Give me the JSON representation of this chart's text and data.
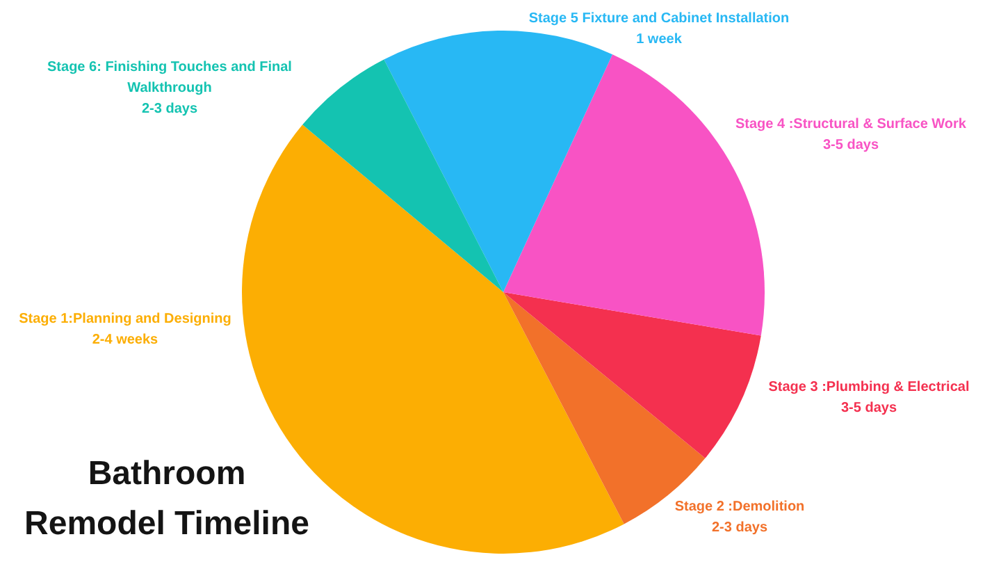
{
  "chart_data": {
    "type": "pie",
    "title": "Bathroom Remodel Timeline",
    "categories": [
      "Stage 1:Planning and Designing\n2-4 weeks",
      "Stage 2 :Demolition\n2-3 days",
      "Stage 3 :Plumbing & Electrical\n3-5 days",
      "Stage 4 :Structural & Surface Work\n3-5 days",
      "Stage 5 Fixture and Cabinet Installation\n1 week",
      "Stage 6: Finishing Touches and Final Walkthrough\n2-3 days"
    ],
    "values": [
      43.7,
      6.4,
      8.3,
      20.8,
      14.4,
      6.4
    ],
    "colors": [
      "#fcae03",
      "#f2712a",
      "#f4304f",
      "#f853c4",
      "#28b8f4",
      "#14c3b1"
    ]
  }
}
